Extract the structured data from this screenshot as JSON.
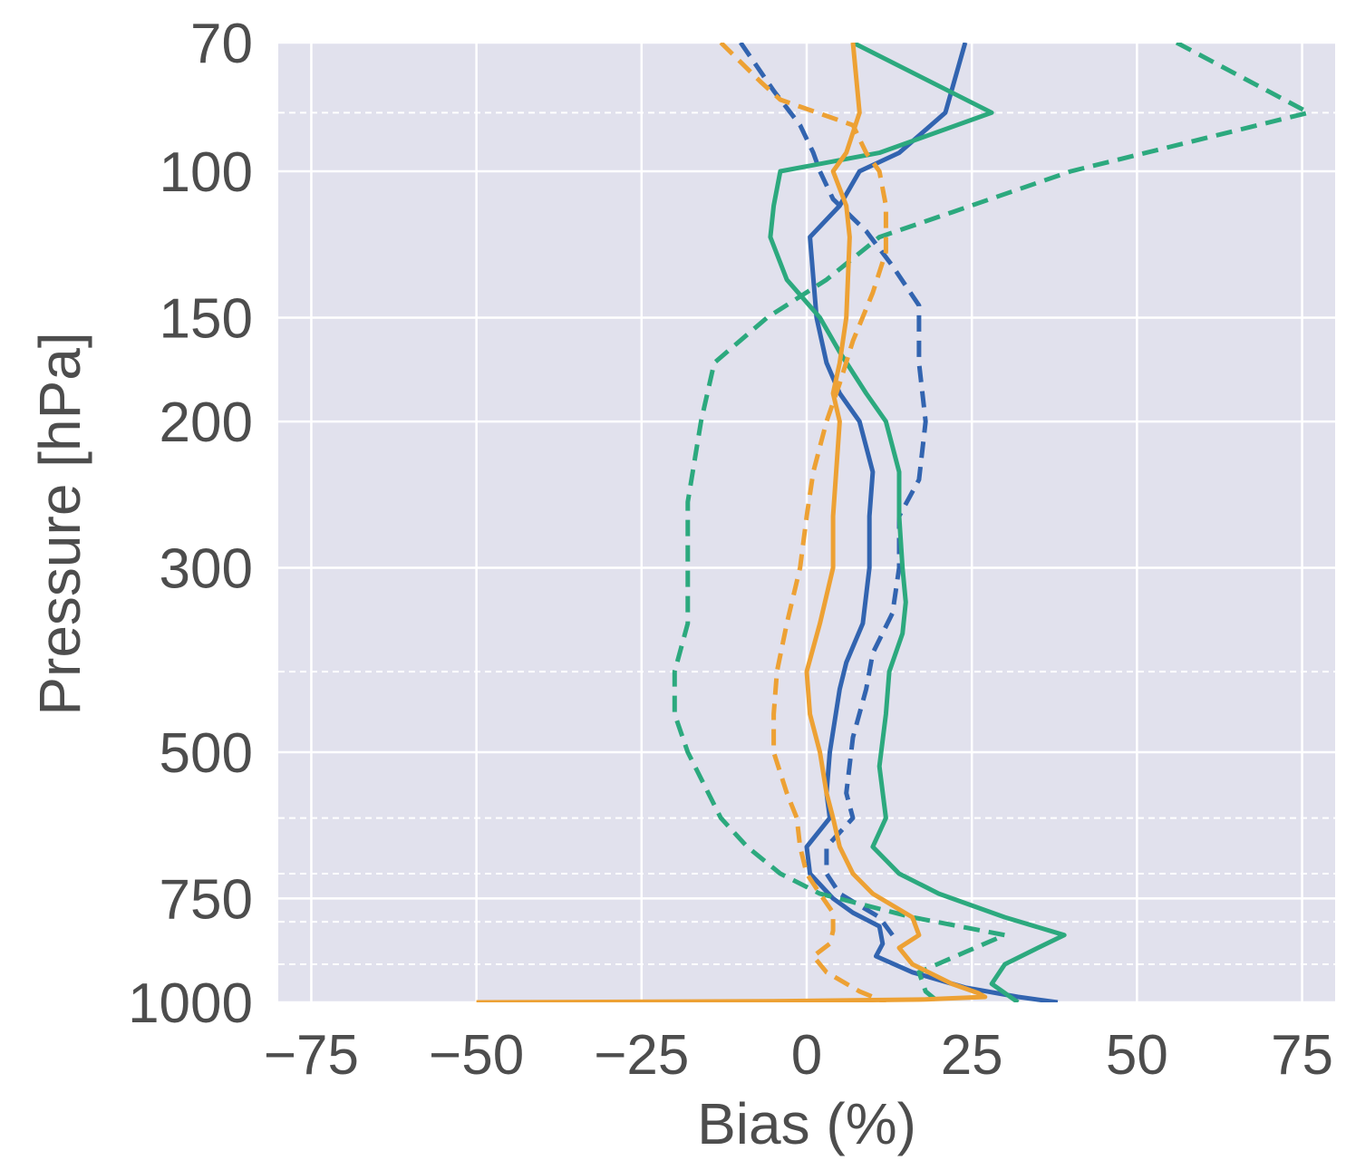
{
  "chart_data": {
    "type": "line",
    "title": "",
    "xlabel": "Bias (%)",
    "ylabel": "Pressure [hPa]",
    "xlim": [
      -80,
      80
    ],
    "ylim": [
      1000,
      70
    ],
    "y_scale": "log",
    "x_ticks": [
      -75,
      -50,
      -25,
      0,
      25,
      50,
      75
    ],
    "x_tick_labels": [
      "−75",
      "−50",
      "−25",
      "0",
      "25",
      "50",
      "75"
    ],
    "y_ticks": [
      70,
      100,
      150,
      200,
      300,
      500,
      750,
      1000
    ],
    "y_tick_labels": [
      "70",
      "100",
      "150",
      "200",
      "300",
      "500",
      "750",
      "1000"
    ],
    "y_minor_ticks": [
      85,
      400,
      600,
      700,
      800,
      900
    ],
    "grid": true,
    "background": "#e1e1ed",
    "series": [
      {
        "color": "#3264b0",
        "style": "solid",
        "points": [
          [
            24,
            70
          ],
          [
            21,
            85
          ],
          [
            14,
            95
          ],
          [
            8,
            100
          ],
          [
            5,
            110
          ],
          [
            0.5,
            120
          ],
          [
            1.5,
            150
          ],
          [
            3,
            170
          ],
          [
            5,
            185
          ],
          [
            8,
            200
          ],
          [
            10,
            230
          ],
          [
            9.5,
            260
          ],
          [
            9.5,
            300
          ],
          [
            8.5,
            350
          ],
          [
            6,
            390
          ],
          [
            5,
            420
          ],
          [
            3.5,
            500
          ],
          [
            3,
            560
          ],
          [
            3.5,
            600
          ],
          [
            0,
            650
          ],
          [
            0.5,
            700
          ],
          [
            4,
            750
          ],
          [
            7,
            780
          ],
          [
            11,
            810
          ],
          [
            11.5,
            850
          ],
          [
            10.5,
            880
          ],
          [
            16,
            920
          ],
          [
            24,
            960
          ],
          [
            32,
            985
          ],
          [
            38,
            1000
          ]
        ]
      },
      {
        "color": "#3264b0",
        "style": "dashed",
        "points": [
          [
            -10,
            70
          ],
          [
            -5,
            80
          ],
          [
            -1,
            88
          ],
          [
            1,
            95
          ],
          [
            2,
            100
          ],
          [
            4,
            108
          ],
          [
            9,
            118
          ],
          [
            13,
            130
          ],
          [
            17,
            145
          ],
          [
            17,
            170
          ],
          [
            18,
            200
          ],
          [
            17,
            235
          ],
          [
            14,
            260
          ],
          [
            14,
            300
          ],
          [
            13,
            340
          ],
          [
            10,
            380
          ],
          [
            9,
            420
          ],
          [
            7,
            480
          ],
          [
            6,
            560
          ],
          [
            7,
            600
          ],
          [
            3,
            650
          ],
          [
            3,
            700
          ],
          [
            5,
            740
          ],
          [
            11,
            790
          ],
          [
            13,
            830
          ]
        ]
      },
      {
        "color": "#2ca97e",
        "style": "solid",
        "points": [
          [
            7,
            70
          ],
          [
            28,
            85
          ],
          [
            11,
            95
          ],
          [
            -4,
            100
          ],
          [
            -5,
            110
          ],
          [
            -5.5,
            120
          ],
          [
            -3,
            135
          ],
          [
            2,
            150
          ],
          [
            5,
            165
          ],
          [
            9,
            185
          ],
          [
            12,
            200
          ],
          [
            14,
            230
          ],
          [
            14,
            260
          ],
          [
            14.5,
            300
          ],
          [
            15,
            330
          ],
          [
            14.5,
            360
          ],
          [
            12.5,
            400
          ],
          [
            12,
            450
          ],
          [
            11,
            520
          ],
          [
            12,
            600
          ],
          [
            10,
            650
          ],
          [
            14,
            700
          ],
          [
            20,
            740
          ],
          [
            30,
            790
          ],
          [
            39,
            830
          ],
          [
            35,
            860
          ],
          [
            30,
            900
          ],
          [
            28,
            950
          ],
          [
            32,
            1000
          ]
        ]
      },
      {
        "color": "#2ca97e",
        "style": "dashed",
        "points": [
          [
            56,
            70
          ],
          [
            76,
            85
          ],
          [
            40,
            100
          ],
          [
            22,
            112
          ],
          [
            11,
            120
          ],
          [
            3,
            135
          ],
          [
            -6,
            150
          ],
          [
            -14,
            170
          ],
          [
            -16,
            200
          ],
          [
            -18,
            250
          ],
          [
            -18,
            300
          ],
          [
            -18,
            350
          ],
          [
            -20,
            400
          ],
          [
            -20,
            450
          ],
          [
            -18,
            500
          ],
          [
            -13,
            600
          ],
          [
            -9,
            650
          ],
          [
            -4,
            700
          ],
          [
            2,
            740
          ],
          [
            16,
            790
          ],
          [
            30,
            830
          ],
          [
            24,
            870
          ],
          [
            17,
            920
          ],
          [
            18,
            970
          ],
          [
            20,
            1000
          ]
        ]
      },
      {
        "color": "#eda134",
        "style": "solid",
        "points": [
          [
            7,
            70
          ],
          [
            8,
            85
          ],
          [
            6,
            95
          ],
          [
            4,
            100
          ],
          [
            6,
            110
          ],
          [
            6.5,
            120
          ],
          [
            6,
            150
          ],
          [
            5,
            170
          ],
          [
            4,
            185
          ],
          [
            5,
            200
          ],
          [
            4,
            260
          ],
          [
            4,
            300
          ],
          [
            2,
            350
          ],
          [
            0,
            400
          ],
          [
            0.5,
            450
          ],
          [
            2,
            500
          ],
          [
            3,
            560
          ],
          [
            4,
            600
          ],
          [
            5,
            650
          ],
          [
            7,
            700
          ],
          [
            10,
            740
          ],
          [
            16,
            790
          ],
          [
            17,
            830
          ],
          [
            14,
            860
          ],
          [
            16,
            900
          ],
          [
            22,
            950
          ],
          [
            26,
            975
          ],
          [
            27,
            985
          ],
          [
            18,
            992
          ],
          [
            -5,
            997
          ],
          [
            -50,
            1000
          ]
        ]
      },
      {
        "color": "#eda134",
        "style": "dashed",
        "points": [
          [
            -13,
            70
          ],
          [
            -7,
            78
          ],
          [
            -4,
            82
          ],
          [
            7,
            88
          ],
          [
            9,
            95
          ],
          [
            11,
            100
          ],
          [
            12,
            110
          ],
          [
            12,
            125
          ],
          [
            10,
            140
          ],
          [
            7,
            160
          ],
          [
            5,
            180
          ],
          [
            3,
            200
          ],
          [
            1,
            230
          ],
          [
            0,
            260
          ],
          [
            -1,
            300
          ],
          [
            -3,
            350
          ],
          [
            -4.5,
            400
          ],
          [
            -5,
            450
          ],
          [
            -5,
            500
          ],
          [
            -3,
            560
          ],
          [
            -1.5,
            600
          ],
          [
            -1,
            650
          ],
          [
            0,
            700
          ],
          [
            2,
            740
          ],
          [
            4,
            780
          ],
          [
            4,
            820
          ],
          [
            3.5,
            850
          ],
          [
            1,
            880
          ],
          [
            3,
            920
          ],
          [
            8,
            970
          ],
          [
            10,
            985
          ],
          [
            12,
            1000
          ]
        ]
      }
    ]
  }
}
